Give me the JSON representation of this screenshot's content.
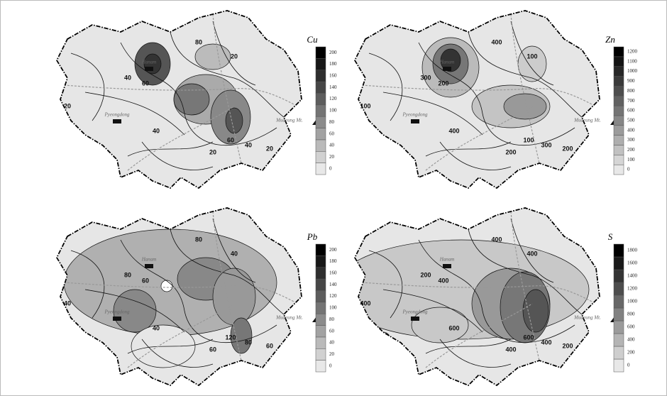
{
  "panels": [
    {
      "element": "Cu",
      "legend": [
        0,
        20,
        40,
        60,
        80,
        100,
        120,
        140,
        160,
        180,
        200
      ],
      "places": [
        "Hanam",
        "Pyeongdong",
        "Mudeung Mt."
      ],
      "contour_labels": [
        40,
        20,
        60,
        40,
        20,
        60,
        40,
        20,
        80,
        20
      ]
    },
    {
      "element": "Zn",
      "legend": [
        0,
        100,
        200,
        300,
        400,
        500,
        600,
        700,
        800,
        900,
        1000,
        1100,
        1200
      ],
      "places": [
        "Hanam",
        "Pyeongdong",
        "Mudeung Mt."
      ],
      "contour_labels": [
        300,
        100,
        200,
        400,
        200,
        100,
        300,
        200,
        400,
        100
      ]
    },
    {
      "element": "Pb",
      "legend": [
        0,
        20,
        40,
        60,
        80,
        100,
        120,
        140,
        160,
        180,
        200
      ],
      "places": [
        "Hanam",
        "Pyeongdong",
        "Mudeung Mt."
      ],
      "contour_labels": [
        80,
        40,
        60,
        40,
        60,
        120,
        80,
        60,
        80,
        40
      ]
    },
    {
      "element": "S",
      "legend": [
        0,
        200,
        400,
        600,
        800,
        1000,
        1200,
        1400,
        1600,
        1800
      ],
      "places": [
        "Hanam",
        "Pyeongdong",
        "Mudeung Mt."
      ],
      "contour_labels": [
        200,
        400,
        400,
        600,
        400,
        600,
        400,
        200,
        400,
        400
      ]
    }
  ]
}
